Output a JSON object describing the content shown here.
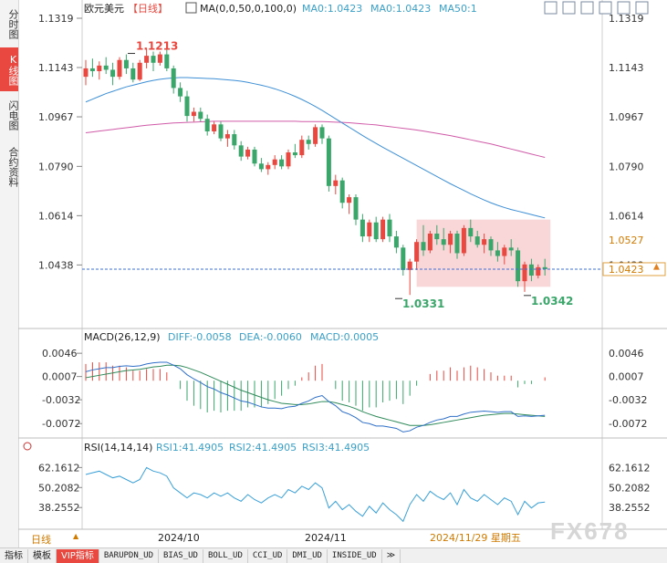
{
  "left_tabs": [
    {
      "label": "分时图",
      "active": false
    },
    {
      "label": "K线图",
      "active": true
    },
    {
      "label": "闪电图",
      "active": false
    },
    {
      "label": "合约资料",
      "active": false
    }
  ],
  "header": {
    "symbol": "欧元美元",
    "period": "【日线】",
    "ma_params": "MA(0,0,50,0,100,0)",
    "ma_a": "MA0:1.0423",
    "ma_b": "MA0:1.0423",
    "ma50": "MA50:1"
  },
  "toolbar_icons": [
    "crosshair-icon",
    "zoom-in-icon",
    "zoom-out-icon",
    "settings-icon",
    "restore-icon",
    "maximize-icon"
  ],
  "price_axis": {
    "labels": [
      "1.1319",
      "1.1143",
      "1.0967",
      "1.0790",
      "1.0614",
      "1.0438"
    ],
    "current": "1.0423",
    "high_box": "1.0527"
  },
  "annotations": {
    "high": "1.1213",
    "low": "1.0331",
    "low2": "1.0342"
  },
  "macd": {
    "title": "MACD(26,12,9)",
    "diff": "DIFF:-0.0058",
    "dea": "DEA:-0.0060",
    "macd": "MACD:0.0005",
    "labels": [
      "0.0046",
      "0.0007",
      "-0.0032",
      "-0.0072"
    ]
  },
  "rsi": {
    "title": "RSI(14,14,14)",
    "rsi1": "RSI1:41.4905",
    "rsi2": "RSI2:41.4905",
    "rsi3": "RSI3:41.4905",
    "labels": [
      "62.1612",
      "50.2082",
      "38.2552"
    ]
  },
  "time_axis": {
    "labels": [
      "2024/10",
      "2024/11"
    ],
    "current_date": "2024/11/29 星期五"
  },
  "period_label": "日线",
  "bottom_tabs": [
    "指标",
    "模板",
    "VIP指标",
    "BARUPDN_UD",
    "BIAS_UD",
    "BOLL_UD",
    "CCI_UD",
    "DMI_UD",
    "INSIDE_UD",
    "≫"
  ],
  "watermark": "FX678",
  "colors": {
    "up": "#e8483f",
    "down": "#3aa66a",
    "ma50": "#3d8fd6",
    "ma100": "#d05aa8",
    "dash": "#3d6fd6",
    "zone": "#f7c9cc"
  },
  "chart_data": {
    "type": "candlestick",
    "title": "欧元美元",
    "ylim": [
      1.026,
      1.1319
    ],
    "y_ticks": [
      1.1319,
      1.1143,
      1.0967,
      1.079,
      1.0614,
      1.0438
    ],
    "x_labels": [
      "2024/10",
      "2024/11"
    ],
    "candles": [
      [
        1.111,
        1.117,
        1.108,
        1.114
      ],
      [
        1.114,
        1.1175,
        1.111,
        1.113
      ],
      [
        1.113,
        1.1165,
        1.11,
        1.115
      ],
      [
        1.115,
        1.118,
        1.112,
        1.1135
      ],
      [
        1.1135,
        1.116,
        1.108,
        1.111
      ],
      [
        1.111,
        1.118,
        1.11,
        1.117
      ],
      [
        1.117,
        1.119,
        1.112,
        1.114
      ],
      [
        1.114,
        1.116,
        1.109,
        1.11
      ],
      [
        1.11,
        1.117,
        1.1095,
        1.116
      ],
      [
        1.116,
        1.1213,
        1.114,
        1.1185
      ],
      [
        1.1185,
        1.12,
        1.113,
        1.116
      ],
      [
        1.116,
        1.12,
        1.115,
        1.119
      ],
      [
        1.119,
        1.121,
        1.113,
        1.114
      ],
      [
        1.114,
        1.115,
        1.105,
        1.107
      ],
      [
        1.107,
        1.109,
        1.102,
        1.104
      ],
      [
        1.104,
        1.106,
        1.095,
        1.097
      ],
      [
        1.097,
        1.1,
        1.095,
        1.0985
      ],
      [
        1.0985,
        1.1,
        1.095,
        1.096
      ],
      [
        1.096,
        1.0975,
        1.09,
        1.0915
      ],
      [
        1.0915,
        1.095,
        1.0905,
        1.094
      ],
      [
        1.094,
        1.095,
        1.088,
        1.089
      ],
      [
        1.089,
        1.092,
        1.086,
        1.0905
      ],
      [
        1.0905,
        1.092,
        1.085,
        1.0865
      ],
      [
        1.0865,
        1.088,
        1.081,
        1.0825
      ],
      [
        1.0825,
        1.086,
        1.0815,
        1.085
      ],
      [
        1.085,
        1.086,
        1.079,
        1.08
      ],
      [
        1.08,
        1.082,
        1.077,
        1.078
      ],
      [
        1.078,
        1.0805,
        1.076,
        1.0795
      ],
      [
        1.0795,
        1.083,
        1.078,
        1.0815
      ],
      [
        1.0815,
        1.083,
        1.078,
        1.079
      ],
      [
        1.079,
        1.085,
        1.078,
        1.084
      ],
      [
        1.084,
        1.087,
        1.082,
        1.083
      ],
      [
        1.083,
        1.09,
        1.082,
        1.0885
      ],
      [
        1.0885,
        1.09,
        1.085,
        1.087
      ],
      [
        1.087,
        1.094,
        1.086,
        1.093
      ],
      [
        1.093,
        1.094,
        1.087,
        1.089
      ],
      [
        1.089,
        1.09,
        1.07,
        1.072
      ],
      [
        1.072,
        1.076,
        1.069,
        1.074
      ],
      [
        1.074,
        1.075,
        1.064,
        1.066
      ],
      [
        1.066,
        1.069,
        1.062,
        1.068
      ],
      [
        1.068,
        1.069,
        1.058,
        1.06
      ],
      [
        1.06,
        1.062,
        1.052,
        1.054
      ],
      [
        1.054,
        1.06,
        1.052,
        1.059
      ],
      [
        1.059,
        1.061,
        1.052,
        1.053
      ],
      [
        1.053,
        1.061,
        1.052,
        1.06
      ],
      [
        1.06,
        1.062,
        1.052,
        1.054
      ],
      [
        1.054,
        1.056,
        1.048,
        1.05
      ],
      [
        1.05,
        1.051,
        1.04,
        1.042
      ],
      [
        1.042,
        1.046,
        1.0331,
        1.045
      ],
      [
        1.045,
        1.053,
        1.042,
        1.052
      ],
      [
        1.052,
        1.058,
        1.047,
        1.049
      ],
      [
        1.049,
        1.056,
        1.048,
        1.055
      ],
      [
        1.055,
        1.058,
        1.051,
        1.053
      ],
      [
        1.053,
        1.057,
        1.049,
        1.051
      ],
      [
        1.051,
        1.056,
        1.048,
        1.055
      ],
      [
        1.055,
        1.056,
        1.046,
        1.048
      ],
      [
        1.048,
        1.058,
        1.047,
        1.057
      ],
      [
        1.057,
        1.06,
        1.052,
        1.054
      ],
      [
        1.054,
        1.056,
        1.05,
        1.051
      ],
      [
        1.051,
        1.055,
        1.048,
        1.053
      ],
      [
        1.053,
        1.054,
        1.047,
        1.049
      ],
      [
        1.049,
        1.052,
        1.045,
        1.047
      ],
      [
        1.047,
        1.051,
        1.044,
        1.05
      ],
      [
        1.05,
        1.053,
        1.047,
        1.049
      ],
      [
        1.049,
        1.05,
        1.036,
        1.038
      ],
      [
        1.038,
        1.045,
        1.0342,
        1.044
      ],
      [
        1.044,
        1.046,
        1.038,
        1.04
      ],
      [
        1.04,
        1.044,
        1.039,
        1.043
      ],
      [
        1.043,
        1.046,
        1.04,
        1.0423
      ]
    ],
    "ma50": [
      1.102,
      1.103,
      1.104,
      1.105,
      1.1058,
      1.1066,
      1.1074,
      1.108,
      1.1086,
      1.1092,
      1.1097,
      1.1101,
      1.1104,
      1.1106,
      1.1107,
      1.1107,
      1.1106,
      1.1105,
      1.1104,
      1.1103,
      1.1101,
      1.1099,
      1.1097,
      1.1094,
      1.109,
      1.1085,
      1.108,
      1.1074,
      1.1067,
      1.1059,
      1.105,
      1.104,
      1.1029,
      1.1017,
      1.1004,
      1.099,
      1.0975,
      1.096,
      1.0945,
      1.093,
      1.0915,
      1.09,
      1.0886,
      1.0872,
      1.0858,
      1.0845,
      1.0832,
      1.0819,
      1.0806,
      1.0793,
      1.078,
      1.0767,
      1.0754,
      1.0741,
      1.0728,
      1.0716,
      1.0704,
      1.0692,
      1.0681,
      1.067,
      1.066,
      1.0651,
      1.0643,
      1.0636,
      1.063,
      1.0624,
      1.0618,
      1.0612,
      1.0606
    ],
    "ma100": [
      1.091,
      1.0913,
      1.0916,
      1.0919,
      1.0922,
      1.0925,
      1.0928,
      1.0931,
      1.0934,
      1.0937,
      1.0939,
      1.0941,
      1.0943,
      1.0945,
      1.0946,
      1.0947,
      1.0948,
      1.0949,
      1.095,
      1.0951,
      1.0951,
      1.0951,
      1.0951,
      1.0951,
      1.0951,
      1.0951,
      1.0951,
      1.0951,
      1.0951,
      1.0951,
      1.0951,
      1.0951,
      1.095,
      1.095,
      1.095,
      1.095,
      1.0949,
      1.0948,
      1.0947,
      1.0946,
      1.0944,
      1.0942,
      1.094,
      1.0938,
      1.0935,
      1.0932,
      1.0929,
      1.0926,
      1.0923,
      1.092,
      1.0916,
      1.0912,
      1.0908,
      1.0904,
      1.09,
      1.0895,
      1.089,
      1.0885,
      1.088,
      1.0875,
      1.087,
      1.0864,
      1.0858,
      1.0852,
      1.0846,
      1.084,
      1.0834,
      1.0828,
      1.0822
    ],
    "zone": {
      "y_top": 1.06,
      "y_bottom": 1.036,
      "start_index": 49,
      "end_index": 68
    },
    "macd_ylim": [
      -0.009,
      0.006
    ],
    "macd_diff": [
      0.0015,
      0.0018,
      0.002,
      0.0022,
      0.0022,
      0.0024,
      0.0025,
      0.0024,
      0.0025,
      0.0028,
      0.003,
      0.0031,
      0.0031,
      0.0026,
      0.002,
      0.001,
      0.0003,
      -0.0003,
      -0.001,
      -0.0014,
      -0.002,
      -0.0024,
      -0.0029,
      -0.0034,
      -0.0036,
      -0.004,
      -0.0044,
      -0.0046,
      -0.0046,
      -0.0047,
      -0.0044,
      -0.0043,
      -0.0038,
      -0.0034,
      -0.0028,
      -0.0025,
      -0.0035,
      -0.0042,
      -0.0052,
      -0.0056,
      -0.0062,
      -0.007,
      -0.0072,
      -0.0076,
      -0.0076,
      -0.0078,
      -0.008,
      -0.0086,
      -0.0084,
      -0.0078,
      -0.0075,
      -0.007,
      -0.0066,
      -0.0064,
      -0.006,
      -0.006,
      -0.0056,
      -0.0053,
      -0.0052,
      -0.0051,
      -0.0052,
      -0.0053,
      -0.0052,
      -0.0052,
      -0.006,
      -0.0059,
      -0.006,
      -0.0059,
      -0.0058
    ],
    "macd_dea": [
      0.0005,
      0.0007,
      0.0009,
      0.0011,
      0.0013,
      0.0015,
      0.0017,
      0.0018,
      0.0019,
      0.0021,
      0.0023,
      0.0024,
      0.0026,
      0.0026,
      0.0025,
      0.0022,
      0.0018,
      0.0014,
      0.0009,
      0.0004,
      -0.0001,
      -0.0006,
      -0.0011,
      -0.0016,
      -0.002,
      -0.0024,
      -0.0028,
      -0.0032,
      -0.0035,
      -0.0038,
      -0.0039,
      -0.004,
      -0.004,
      -0.0039,
      -0.0037,
      -0.0035,
      -0.0035,
      -0.0037,
      -0.004,
      -0.0043,
      -0.0047,
      -0.0052,
      -0.0056,
      -0.006,
      -0.0063,
      -0.0066,
      -0.0069,
      -0.0072,
      -0.0075,
      -0.0075,
      -0.0075,
      -0.0074,
      -0.0072,
      -0.007,
      -0.0068,
      -0.0066,
      -0.0064,
      -0.0062,
      -0.006,
      -0.0058,
      -0.0057,
      -0.0056,
      -0.0055,
      -0.0055,
      -0.0056,
      -0.0057,
      -0.0058,
      -0.0059,
      -0.006
    ],
    "rsi_ylim": [
      28,
      70
    ],
    "rsi": [
      58,
      59,
      60,
      58,
      56,
      57,
      55,
      53,
      55,
      62.16,
      60,
      59,
      57,
      50,
      47,
      44,
      47,
      46,
      44,
      47,
      45,
      47,
      44,
      42,
      46,
      43,
      41,
      44,
      46,
      44,
      49,
      47,
      51,
      49,
      53,
      50,
      38,
      42,
      37,
      40,
      36,
      33,
      39,
      35,
      41,
      37,
      34,
      30,
      40,
      46,
      42,
      48,
      45,
      43,
      47,
      40,
      49,
      44,
      42,
      46,
      43,
      40,
      44,
      42,
      34,
      42,
      38,
      41,
      41.49
    ]
  }
}
